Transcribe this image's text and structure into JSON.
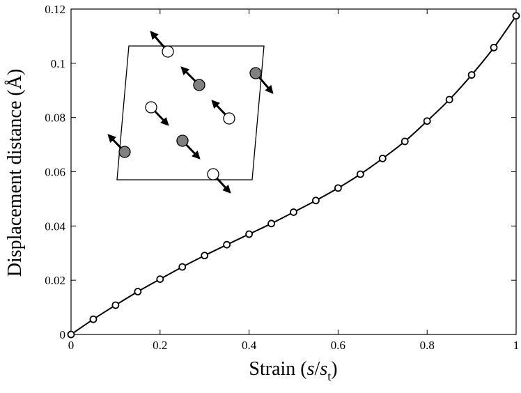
{
  "chart_data": {
    "type": "line",
    "title": "",
    "xlabel": {
      "pre": "Strain (",
      "s1": "s",
      "slash": "/",
      "s2": "s",
      "sub": "t",
      "post": ")"
    },
    "ylabel": "Displacement distance (Å)",
    "xlim": [
      0,
      1
    ],
    "ylim": [
      0,
      0.12
    ],
    "xticks": [
      0,
      0.2,
      0.4,
      0.6,
      0.8,
      1
    ],
    "xtick_labels": [
      "0",
      "0.2",
      "0.4",
      "0.6",
      "0.8",
      "1"
    ],
    "yticks": [
      0,
      0.02,
      0.04,
      0.06,
      0.08,
      0.1,
      0.12
    ],
    "ytick_labels": [
      "0",
      "0.02",
      "0.04",
      "0.06",
      "0.08",
      "0.1",
      "0.12"
    ],
    "grid": false,
    "series": [
      {
        "marker": "open-circle",
        "color": "#000000",
        "x": [
          0,
          0.05,
          0.1,
          0.15,
          0.2,
          0.25,
          0.3,
          0.35,
          0.4,
          0.45,
          0.5,
          0.55,
          0.6,
          0.65,
          0.7,
          0.75,
          0.8,
          0.85,
          0.9,
          0.95,
          1.0
        ],
        "y": [
          0,
          0.0056,
          0.0108,
          0.0158,
          0.0204,
          0.0249,
          0.0291,
          0.0331,
          0.037,
          0.0409,
          0.0451,
          0.0494,
          0.054,
          0.0591,
          0.0649,
          0.0712,
          0.0787,
          0.0866,
          0.0957,
          0.1058,
          0.1175
        ]
      }
    ],
    "inset": {
      "type": "atomic-displacement-schematic",
      "atoms": [
        {
          "fill": "white",
          "arrow": "up-left"
        },
        {
          "fill": "gray",
          "arrow": "up-left"
        },
        {
          "fill": "gray",
          "arrow": "down-right"
        },
        {
          "fill": "white",
          "arrow": "down-right"
        },
        {
          "fill": "white",
          "arrow": "up-left"
        },
        {
          "fill": "gray",
          "arrow": "up-left"
        },
        {
          "fill": "gray",
          "arrow": "down-right"
        },
        {
          "fill": "white",
          "arrow": "down-right"
        }
      ],
      "colors": {
        "gray_atom": "#808080",
        "white_atom": "#ffffff"
      }
    }
  }
}
